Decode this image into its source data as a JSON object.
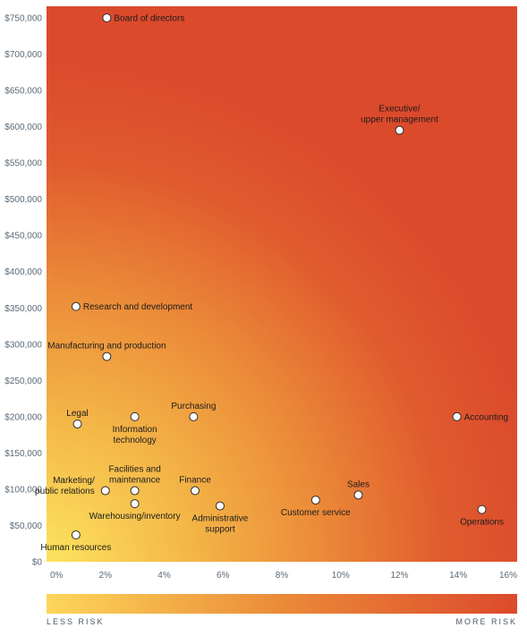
{
  "chart_data": {
    "type": "scatter",
    "title": "",
    "xlabel": "",
    "ylabel": "",
    "xlim": [
      0,
      16
    ],
    "ylim": [
      0,
      750000
    ],
    "x_ticks": [
      "0%",
      "2%",
      "4%",
      "6%",
      "8%",
      "10%",
      "12%",
      "14%",
      "16%"
    ],
    "y_ticks": [
      "$0",
      "$50,000",
      "$100,000",
      "$150,000",
      "$200,000",
      "$250,000",
      "$300,000",
      "$350,000",
      "$400,000",
      "$450,000",
      "$500,000",
      "$550,000",
      "$600,000",
      "$650,000",
      "$700,000",
      "$750,000"
    ],
    "points": [
      {
        "label": [
          "Board of directors"
        ],
        "x": 2.05,
        "y": 750000,
        "pos": "right"
      },
      {
        "label": [
          "Executive/",
          "upper management"
        ],
        "x": 12.0,
        "y": 595000,
        "pos": "above"
      },
      {
        "label": [
          "Research and development"
        ],
        "x": 1.0,
        "y": 352000,
        "pos": "right"
      },
      {
        "label": [
          "Manufacturing and production"
        ],
        "x": 2.05,
        "y": 283000,
        "pos": "above"
      },
      {
        "label": [
          "Legal"
        ],
        "x": 1.05,
        "y": 190000,
        "pos": "above"
      },
      {
        "label": [
          "Information",
          "technology"
        ],
        "x": 3.0,
        "y": 200000,
        "pos": "below"
      },
      {
        "label": [
          "Purchasing"
        ],
        "x": 5.0,
        "y": 200000,
        "pos": "above"
      },
      {
        "label": [
          "Accounting"
        ],
        "x": 13.95,
        "y": 200000,
        "pos": "right"
      },
      {
        "label": [
          "Marketing/",
          "public relations"
        ],
        "x": 2.0,
        "y": 98000,
        "pos": "left"
      },
      {
        "label": [
          "Facilities and",
          "maintenance"
        ],
        "x": 3.0,
        "y": 98000,
        "pos": "above"
      },
      {
        "label": [
          "Warehousing/inventory"
        ],
        "x": 3.0,
        "y": 80000,
        "pos": "below"
      },
      {
        "label": [
          "Finance"
        ],
        "x": 5.05,
        "y": 98000,
        "pos": "above"
      },
      {
        "label": [
          "Administrative",
          "support"
        ],
        "x": 5.9,
        "y": 77000,
        "pos": "below"
      },
      {
        "label": [
          "Customer service"
        ],
        "x": 9.15,
        "y": 85000,
        "pos": "below"
      },
      {
        "label": [
          "Sales"
        ],
        "x": 10.6,
        "y": 92000,
        "pos": "above"
      },
      {
        "label": [
          "Operations"
        ],
        "x": 14.8,
        "y": 72000,
        "pos": "below"
      },
      {
        "label": [
          "Human resources"
        ],
        "x": 1.0,
        "y": 37000,
        "pos": "below"
      }
    ]
  },
  "legend": {
    "low": "LESS RISK",
    "high": "MORE RISK"
  },
  "colors": {
    "low_risk": "#fcd65a",
    "mid_risk": "#eb8a38",
    "high_risk": "#dc4a2c"
  }
}
